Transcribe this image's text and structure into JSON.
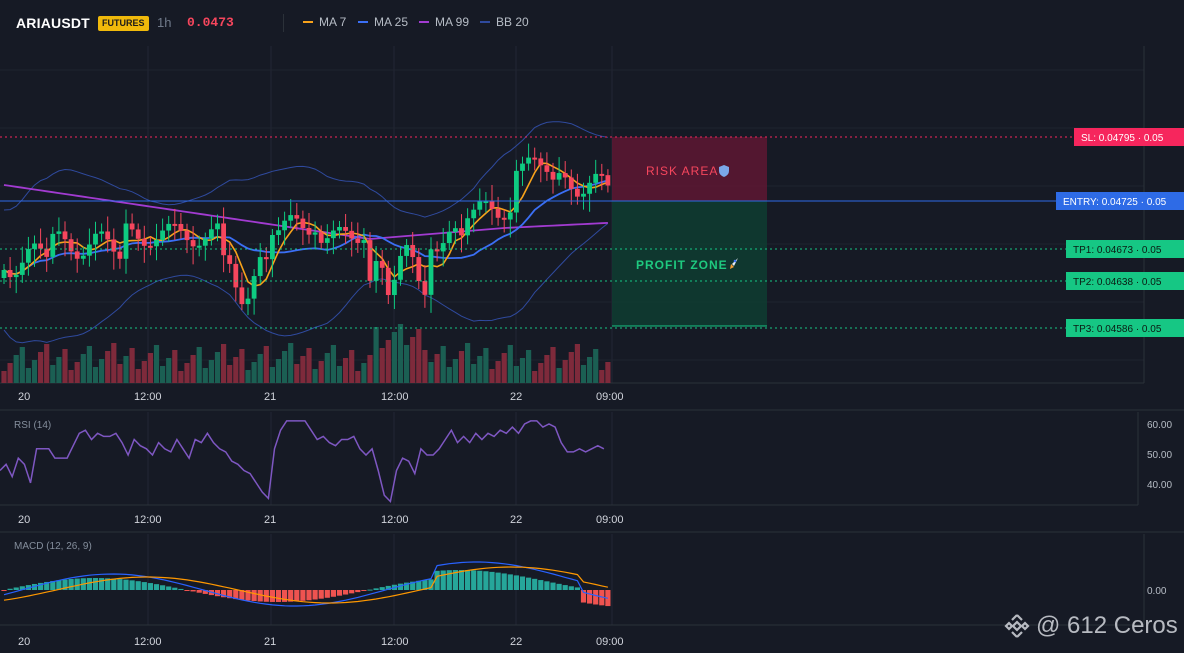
{
  "header": {
    "symbol": "ARIAUSDT",
    "badge": "FUTURES",
    "timeframe": "1h",
    "last_price": "0.0473",
    "legend": [
      {
        "label": "MA 7",
        "color": "#f7a21b"
      },
      {
        "label": "MA 25",
        "color": "#3b6ff5"
      },
      {
        "label": "MA 99",
        "color": "#a23bd1"
      },
      {
        "label": "BB 20",
        "color": "#2f4a9e"
      }
    ]
  },
  "trade": {
    "risk_label": "RISK AREA",
    "profit_label": "PROFIT ZONE",
    "levels": [
      {
        "label": "SL: 0.04795",
        "value": 0.04795,
        "qty": "0.05",
        "color": "#f6265d"
      },
      {
        "label": "ENTRY: 0.04725",
        "value": 0.04725,
        "qty": "0.05",
        "color": "#2e6be6"
      },
      {
        "label": "TP1: 0.04673",
        "value": 0.04673,
        "qty": "0.05",
        "color": "#16c784"
      },
      {
        "label": "TP2: 0.04638",
        "value": 0.04638,
        "qty": "0.05",
        "color": "#16c784"
      },
      {
        "label": "TP3: 0.04586",
        "value": 0.04586,
        "qty": "0.05",
        "color": "#16c784"
      }
    ]
  },
  "time_axis": [
    "20",
    "12:00",
    "21",
    "12:00",
    "22",
    "09:00"
  ],
  "rsi": {
    "title": "RSI (14)",
    "ticks": [
      "60.00",
      "50.00",
      "40.00"
    ],
    "values": [
      45,
      47,
      43,
      49,
      47,
      41,
      52,
      52,
      52,
      49,
      49,
      49,
      53,
      57,
      58,
      55,
      57,
      56,
      56,
      57,
      54,
      50,
      55,
      53,
      52,
      50,
      54,
      52,
      51,
      55,
      52,
      49,
      55,
      54,
      57,
      54,
      52,
      51,
      48,
      47,
      45,
      44,
      41,
      38,
      36,
      52,
      58,
      61,
      61,
      61,
      61,
      58,
      55,
      56,
      54,
      53,
      55,
      55,
      56,
      52,
      50,
      52,
      45,
      37,
      35,
      45,
      49,
      48,
      44,
      52,
      50,
      50,
      52,
      55,
      58,
      54,
      56,
      54,
      57,
      55,
      57,
      56,
      58,
      57,
      59,
      57,
      60,
      61,
      61,
      59,
      60,
      59,
      54,
      51,
      51,
      52,
      51,
      52,
      53,
      52
    ]
  },
  "macd": {
    "title": "MACD (12, 26, 9)",
    "tick": "0.00"
  },
  "watermark": "@ 612 Ceros"
}
